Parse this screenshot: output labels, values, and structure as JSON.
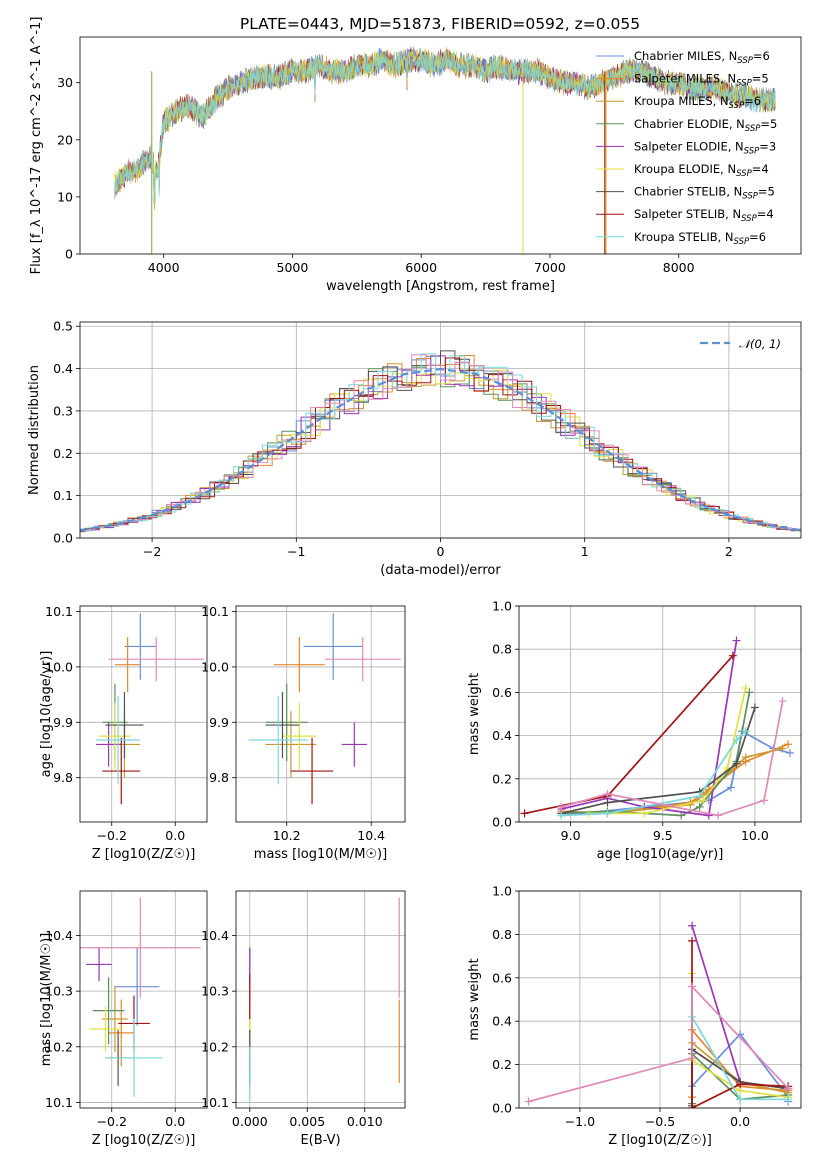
{
  "figure_title": "PLATE=0443, MJD=51873, FIBERID=0592, z=0.055",
  "colors": [
    "#6a8fd8",
    "#e8872a",
    "#c99a2e",
    "#5c8f5c",
    "#9b35b8",
    "#e0e040",
    "#505050",
    "#a01414",
    "#7ad8dc",
    "#e08aba"
  ],
  "chart_data": [
    {
      "id": "spectrum",
      "type": "line",
      "title": "PLATE=0443, MJD=51873, FIBERID=0592, z=0.055",
      "xlabel": "wavelength [Angstrom, rest frame]",
      "ylabel": "Flux [f_λ 10^-17 erg cm^-2 s^-1 A^-1]",
      "xlim": [
        3350,
        8950
      ],
      "ylim": [
        0,
        38
      ],
      "xticks": [
        4000,
        5000,
        6000,
        7000,
        8000
      ],
      "yticks": [
        0,
        10,
        20,
        30
      ],
      "grid": false,
      "legend": "top-right",
      "x": [
        3620,
        3700,
        3800,
        3900,
        3950,
        4000,
        4100,
        4200,
        4300,
        4400,
        4500,
        4600,
        4700,
        4800,
        4900,
        5000,
        5100,
        5200,
        5300,
        5400,
        5500,
        5600,
        5700,
        5800,
        5900,
        6000,
        6100,
        6200,
        6300,
        6400,
        6500,
        6600,
        6700,
        6800,
        6900,
        7000,
        7100,
        7200,
        7300,
        7400,
        7500,
        7600,
        7700,
        7800,
        7900,
        8000,
        8100,
        8200,
        8300,
        8400,
        8500,
        8600,
        8750
      ],
      "y": [
        12,
        14,
        15,
        17,
        14,
        23,
        25,
        26,
        24,
        27,
        29,
        30,
        31,
        31,
        31,
        32,
        32,
        33,
        32,
        32,
        33,
        33,
        34,
        33,
        34,
        34,
        33,
        34,
        33,
        33,
        32,
        33,
        32,
        32,
        32,
        31,
        30,
        30,
        29,
        30,
        31,
        32,
        32,
        31,
        30,
        30,
        29,
        29,
        29,
        28,
        28,
        27,
        27
      ],
      "series": [
        {
          "name": "Chabrier MILES, N_SSP=6"
        },
        {
          "name": "Salpeter MILES, N_SSP=5"
        },
        {
          "name": "Kroupa MILES, N_SSP=6"
        },
        {
          "name": "Chabrier ELODIE, N_SSP=5"
        },
        {
          "name": "Salpeter ELODIE, N_SSP=3"
        },
        {
          "name": "Kroupa ELODIE, N_SSP=4"
        },
        {
          "name": "Chabrier STELIB, N_SSP=5"
        },
        {
          "name": "Salpeter STELIB, N_SSP=4"
        },
        {
          "name": "Kroupa STELIB, N_SSP=6"
        }
      ]
    },
    {
      "id": "residuals",
      "type": "line",
      "xlabel": "(data-model)/error",
      "ylabel": "Normed distribution",
      "xlim": [
        -2.5,
        2.5
      ],
      "ylim": [
        0,
        0.51
      ],
      "xticks": [
        -2,
        -1,
        0,
        1,
        2
      ],
      "yticks": [
        0.0,
        0.1,
        0.2,
        0.3,
        0.4,
        0.5
      ],
      "grid": true,
      "legend": "top-right",
      "series": [
        {
          "name": "𝒩(0, 1)",
          "x": [
            -2.5,
            -2.25,
            -2,
            -1.75,
            -1.5,
            -1.25,
            -1,
            -0.75,
            -0.5,
            -0.25,
            0,
            0.25,
            0.5,
            0.75,
            1,
            1.25,
            1.5,
            1.75,
            2,
            2.25,
            2.5
          ],
          "y": [
            0.018,
            0.032,
            0.054,
            0.086,
            0.13,
            0.183,
            0.242,
            0.301,
            0.352,
            0.387,
            0.399,
            0.387,
            0.352,
            0.301,
            0.242,
            0.183,
            0.13,
            0.086,
            0.054,
            0.032,
            0.018
          ]
        }
      ]
    },
    {
      "id": "age_vs_Z",
      "type": "scatter",
      "xlabel": "Z [log10(Z/Z☉)]",
      "ylabel": "age [log10(age/yr)]",
      "xlim": [
        -0.3,
        0.1
      ],
      "ylim": [
        9.72,
        10.11
      ],
      "xticks": [
        -0.2,
        0.0
      ],
      "yticks": [
        9.8,
        9.9,
        10.0,
        10.1
      ],
      "grid": true,
      "series": [
        {
          "x": -0.11,
          "y": 10.037,
          "xerr": 0.05,
          "yerr": 0.06
        },
        {
          "x": -0.15,
          "y": 10.004,
          "xerr": 0.04,
          "yerr": 0.05
        },
        {
          "x": -0.16,
          "y": 9.86,
          "xerr": 0.05,
          "yerr": 0.06
        },
        {
          "x": -0.19,
          "y": 9.9,
          "xerr": 0.04,
          "yerr": 0.07
        },
        {
          "x": -0.21,
          "y": 9.86,
          "xerr": 0.04,
          "yerr": 0.04
        },
        {
          "x": -0.19,
          "y": 9.875,
          "xerr": 0.05,
          "yerr": 0.06
        },
        {
          "x": -0.16,
          "y": 9.895,
          "xerr": 0.06,
          "yerr": 0.06
        },
        {
          "x": -0.17,
          "y": 9.812,
          "xerr": 0.06,
          "yerr": 0.06
        },
        {
          "x": -0.18,
          "y": 9.868,
          "xerr": 0.07,
          "yerr": 0.08
        },
        {
          "x": -0.06,
          "y": 10.014,
          "xerr": 0.15,
          "yerr": 0.04
        }
      ]
    },
    {
      "id": "age_vs_mass",
      "type": "scatter",
      "xlabel": "mass [log10(M/M☉)]",
      "ylabel": "",
      "xlim": [
        10.08,
        10.48
      ],
      "ylim": [
        9.72,
        10.11
      ],
      "xticks": [
        10.2,
        10.4
      ],
      "yticks": [
        9.8,
        9.9,
        10.0,
        10.1
      ],
      "grid": true,
      "series": [
        {
          "x": 10.31,
          "y": 10.037,
          "xerr": 0.07,
          "yerr": 0.06
        },
        {
          "x": 10.23,
          "y": 10.004,
          "xerr": 0.06,
          "yerr": 0.05
        },
        {
          "x": 10.21,
          "y": 9.86,
          "xerr": 0.06,
          "yerr": 0.06
        },
        {
          "x": 10.2,
          "y": 9.9,
          "xerr": 0.05,
          "yerr": 0.07
        },
        {
          "x": 10.36,
          "y": 9.86,
          "xerr": 0.03,
          "yerr": 0.04
        },
        {
          "x": 10.23,
          "y": 9.875,
          "xerr": 0.04,
          "yerr": 0.06
        },
        {
          "x": 10.19,
          "y": 9.895,
          "xerr": 0.04,
          "yerr": 0.06
        },
        {
          "x": 10.26,
          "y": 9.812,
          "xerr": 0.05,
          "yerr": 0.06
        },
        {
          "x": 10.18,
          "y": 9.868,
          "xerr": 0.07,
          "yerr": 0.08
        },
        {
          "x": 10.38,
          "y": 10.014,
          "xerr": 0.09,
          "yerr": 0.04
        }
      ]
    },
    {
      "id": "massweight_vs_age",
      "type": "line",
      "xlabel": "age [log10(age/yr)]",
      "ylabel": "mass weight",
      "xlim": [
        8.72,
        10.25
      ],
      "ylim": [
        0,
        1
      ],
      "xticks": [
        9.0,
        9.5,
        10.0
      ],
      "yticks": [
        0.0,
        0.2,
        0.4,
        0.6,
        0.8,
        1.0
      ],
      "grid": true,
      "series": [
        {
          "x": [
            8.95,
            9.75,
            9.87,
            9.93,
            10.1,
            10.19
          ],
          "y": [
            0.03,
            0.1,
            0.16,
            0.42,
            0.34,
            0.32
          ]
        },
        {
          "x": [
            8.95,
            9.2,
            9.65,
            9.75,
            9.95,
            10.18
          ],
          "y": [
            0.05,
            0.04,
            0.09,
            0.15,
            0.28,
            0.36
          ]
        },
        {
          "x": [
            9.2,
            9.65,
            9.75,
            9.95,
            10.15
          ],
          "y": [
            0.04,
            0.08,
            0.14,
            0.3,
            0.34
          ]
        },
        {
          "x": [
            8.95,
            9.2,
            9.6,
            9.7,
            9.9,
            9.97
          ],
          "y": [
            0.04,
            0.05,
            0.03,
            0.07,
            0.28,
            0.6
          ]
        },
        {
          "x": [
            8.95,
            9.2,
            9.4,
            9.75,
            9.9
          ],
          "y": [
            0.06,
            0.11,
            0.07,
            0.03,
            0.84
          ]
        },
        {
          "x": [
            9.1,
            9.4,
            9.72,
            9.85,
            9.95
          ],
          "y": [
            0.04,
            0.04,
            0.1,
            0.25,
            0.62
          ]
        },
        {
          "x": [
            8.95,
            9.2,
            9.7,
            9.9,
            10.0
          ],
          "y": [
            0.04,
            0.09,
            0.14,
            0.27,
            0.53
          ]
        },
        {
          "x": [
            8.75,
            9.2,
            9.88
          ],
          "y": [
            0.04,
            0.12,
            0.77
          ]
        },
        {
          "x": [
            8.95,
            9.2,
            9.7,
            9.9,
            9.95
          ],
          "y": [
            0.03,
            0.04,
            0.12,
            0.38,
            0.42
          ]
        },
        {
          "x": [
            8.95,
            9.2,
            9.8,
            10.05,
            10.15
          ],
          "y": [
            0.07,
            0.13,
            0.03,
            0.1,
            0.56
          ]
        }
      ]
    },
    {
      "id": "mass_vs_Z",
      "type": "scatter",
      "xlabel": "Z [log10(Z/Z☉)]",
      "ylabel": "mass [log10(M/M☉)]",
      "xlim": [
        -0.3,
        0.1
      ],
      "ylim": [
        10.09,
        10.48
      ],
      "xticks": [
        -0.2,
        0.0
      ],
      "yticks": [
        10.1,
        10.2,
        10.3,
        10.4
      ],
      "grid": true,
      "series": [
        {
          "x": -0.12,
          "y": 10.308,
          "xerr": 0.07,
          "yerr": 0.07
        },
        {
          "x": -0.17,
          "y": 10.225,
          "xerr": 0.04,
          "yerr": 0.06
        },
        {
          "x": -0.19,
          "y": 10.25,
          "xerr": 0.04,
          "yerr": 0.06
        },
        {
          "x": -0.21,
          "y": 10.265,
          "xerr": 0.05,
          "yerr": 0.06
        },
        {
          "x": -0.24,
          "y": 10.348,
          "xerr": 0.04,
          "yerr": 0.03
        },
        {
          "x": -0.22,
          "y": 10.232,
          "xerr": 0.05,
          "yerr": 0.04
        },
        {
          "x": -0.18,
          "y": 10.18,
          "xerr": 0.04,
          "yerr": 0.05
        },
        {
          "x": -0.13,
          "y": 10.242,
          "xerr": 0.05,
          "yerr": 0.05
        },
        {
          "x": -0.13,
          "y": 10.18,
          "xerr": 0.09,
          "yerr": 0.07
        },
        {
          "x": -0.11,
          "y": 10.378,
          "xerr": 0.19,
          "yerr": 0.09
        }
      ]
    },
    {
      "id": "mass_vs_ebv",
      "type": "scatter",
      "xlabel": "E(B-V)",
      "ylabel": "",
      "xlim": [
        -0.0012,
        0.0135
      ],
      "ylim": [
        10.09,
        10.48
      ],
      "xticks": [
        0.0,
        0.005,
        0.01
      ],
      "yticks": [
        10.1,
        10.2,
        10.3,
        10.4
      ],
      "grid": true,
      "series": [
        {
          "x": 0.0,
          "y": 10.308,
          "yerr": 0.07
        },
        {
          "x": 0.013,
          "y": 10.21,
          "yerr": 0.075
        },
        {
          "x": 0.0,
          "y": 10.25,
          "yerr": 0.06
        },
        {
          "x": 0.0,
          "y": 10.19,
          "yerr": 0.04
        },
        {
          "x": 0.0,
          "y": 10.348,
          "yerr": 0.03
        },
        {
          "x": 0.0,
          "y": 10.232,
          "yerr": 0.04
        },
        {
          "x": 0.0,
          "y": 10.18,
          "yerr": 0.05
        },
        {
          "x": 0.0,
          "y": 10.29,
          "yerr": 0.04
        },
        {
          "x": 0.0,
          "y": 10.15,
          "yerr": 0.05
        },
        {
          "x": 0.013,
          "y": 10.378,
          "yerr": 0.09
        }
      ]
    },
    {
      "id": "massweight_vs_Z",
      "type": "line",
      "xlabel": "Z [log10(Z/Z☉)]",
      "ylabel": "mass weight",
      "xlim": [
        -1.38,
        0.38
      ],
      "ylim": [
        0,
        1
      ],
      "xticks": [
        -1.0,
        -0.5,
        0.0
      ],
      "yticks": [
        0.0,
        0.2,
        0.4,
        0.6,
        0.8,
        1.0
      ],
      "grid": true,
      "series": [
        {
          "x": [
            -0.3,
            0.0,
            0.3,
            0.3
          ],
          "y": [
            0.1,
            0.34,
            0.05,
            0.03
          ]
        },
        {
          "x": [
            -0.3,
            -0.3,
            0.0,
            0.3
          ],
          "y": [
            0.05,
            0.36,
            0.1,
            0.08
          ]
        },
        {
          "x": [
            -0.3,
            0.0,
            0.3
          ],
          "y": [
            0.3,
            0.12,
            0.07
          ]
        },
        {
          "x": [
            -0.3,
            -0.3,
            0.0,
            0.3
          ],
          "y": [
            0.02,
            0.25,
            0.04,
            0.06
          ]
        },
        {
          "x": [
            -0.3,
            0.0,
            0.3
          ],
          "y": [
            0.84,
            0.12,
            0.09
          ]
        },
        {
          "x": [
            -0.3,
            -0.3,
            0.0,
            0.3
          ],
          "y": [
            0.62,
            0.22,
            0.08,
            0.05
          ]
        },
        {
          "x": [
            -0.3,
            -0.3,
            0.0,
            0.3
          ],
          "y": [
            0.01,
            0.27,
            0.12,
            0.09
          ]
        },
        {
          "x": [
            -0.3,
            -0.3,
            0.0,
            0.3
          ],
          "y": [
            0.77,
            0.0,
            0.11,
            0.1
          ]
        },
        {
          "x": [
            -0.3,
            0.0,
            0.3
          ],
          "y": [
            0.42,
            0.04,
            0.04
          ]
        },
        {
          "x": [
            -1.32,
            -0.3,
            -0.3,
            0.3
          ],
          "y": [
            0.03,
            0.23,
            0.56,
            0.09
          ]
        }
      ]
    }
  ]
}
